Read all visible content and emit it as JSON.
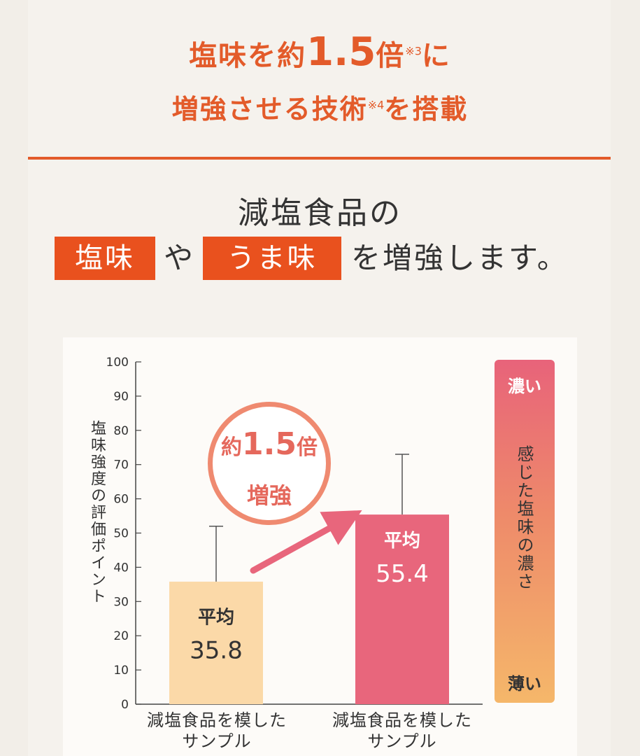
{
  "headline": {
    "line1_pre": "塩味を約",
    "line1_big": "1.5",
    "line1_post": "倍",
    "line1_note": "※3",
    "line1_end": "に",
    "line2_pre": "増強させる技術",
    "line2_note": "※4",
    "line2_end": "を搭載"
  },
  "subhead": {
    "line1": "減塩食品の",
    "pill1": "塩味",
    "conj": "や",
    "pill2": "うま味",
    "tail": "を増強します。"
  },
  "chart_data": {
    "type": "bar",
    "ylabel": "塩味強度の評価ポイント",
    "ylim": [
      0,
      100
    ],
    "yticks": [
      0,
      10,
      20,
      30,
      40,
      50,
      60,
      70,
      80,
      90,
      100
    ],
    "categories": [
      "減塩食品を模した\nサンプル",
      "減塩食品を模した\nサンプル"
    ],
    "values": [
      35.8,
      55.4
    ],
    "error_upper": [
      52,
      73
    ],
    "bar_label_prefix": "平均",
    "bar_colors": [
      "#fbd9a8",
      "#e8667c"
    ],
    "annotation": {
      "prefix": "約",
      "value": "1.5",
      "suffix": "倍",
      "line2": "増強"
    },
    "scale": {
      "top": "濃い",
      "middle": "感じた塩味の濃さ",
      "bottom": "薄い"
    },
    "accent": "#e35b2a"
  }
}
